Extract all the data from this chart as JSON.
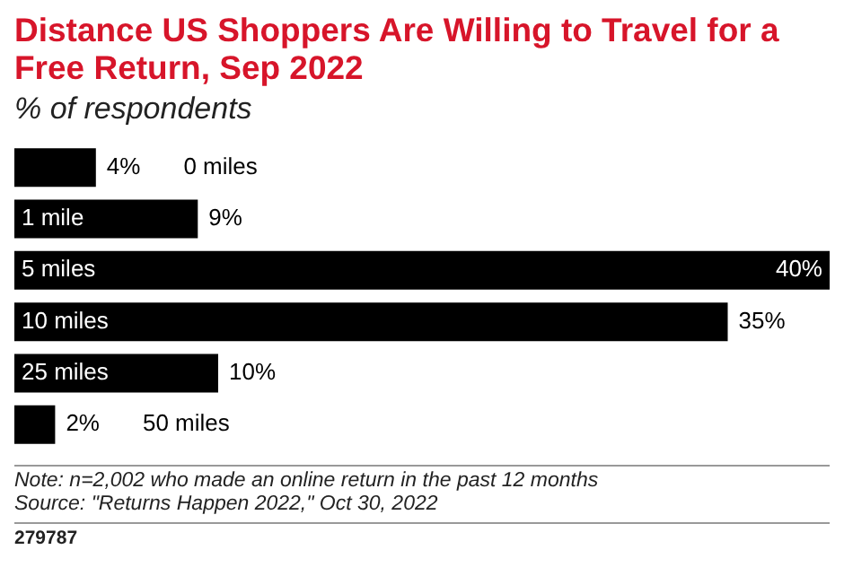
{
  "chart_data": {
    "type": "bar",
    "orientation": "horizontal",
    "title": "Distance US Shoppers Are Willing to Travel for a Free Return, Sep 2022",
    "subtitle": "% of respondents",
    "categories": [
      "0 miles",
      "1 mile",
      "5 miles",
      "10 miles",
      "25 miles",
      "50 miles"
    ],
    "values": [
      4,
      9,
      40,
      35,
      10,
      2
    ],
    "value_labels": [
      "4%",
      "9%",
      "40%",
      "35%",
      "10%",
      "2%"
    ],
    "color": "#000000",
    "annotations": [
      "Note: n=2,002 who made an online return in the past 12 months",
      "Source: \"Returns Happen 2022,\" Oct 30, 2022",
      "279787"
    ]
  }
}
